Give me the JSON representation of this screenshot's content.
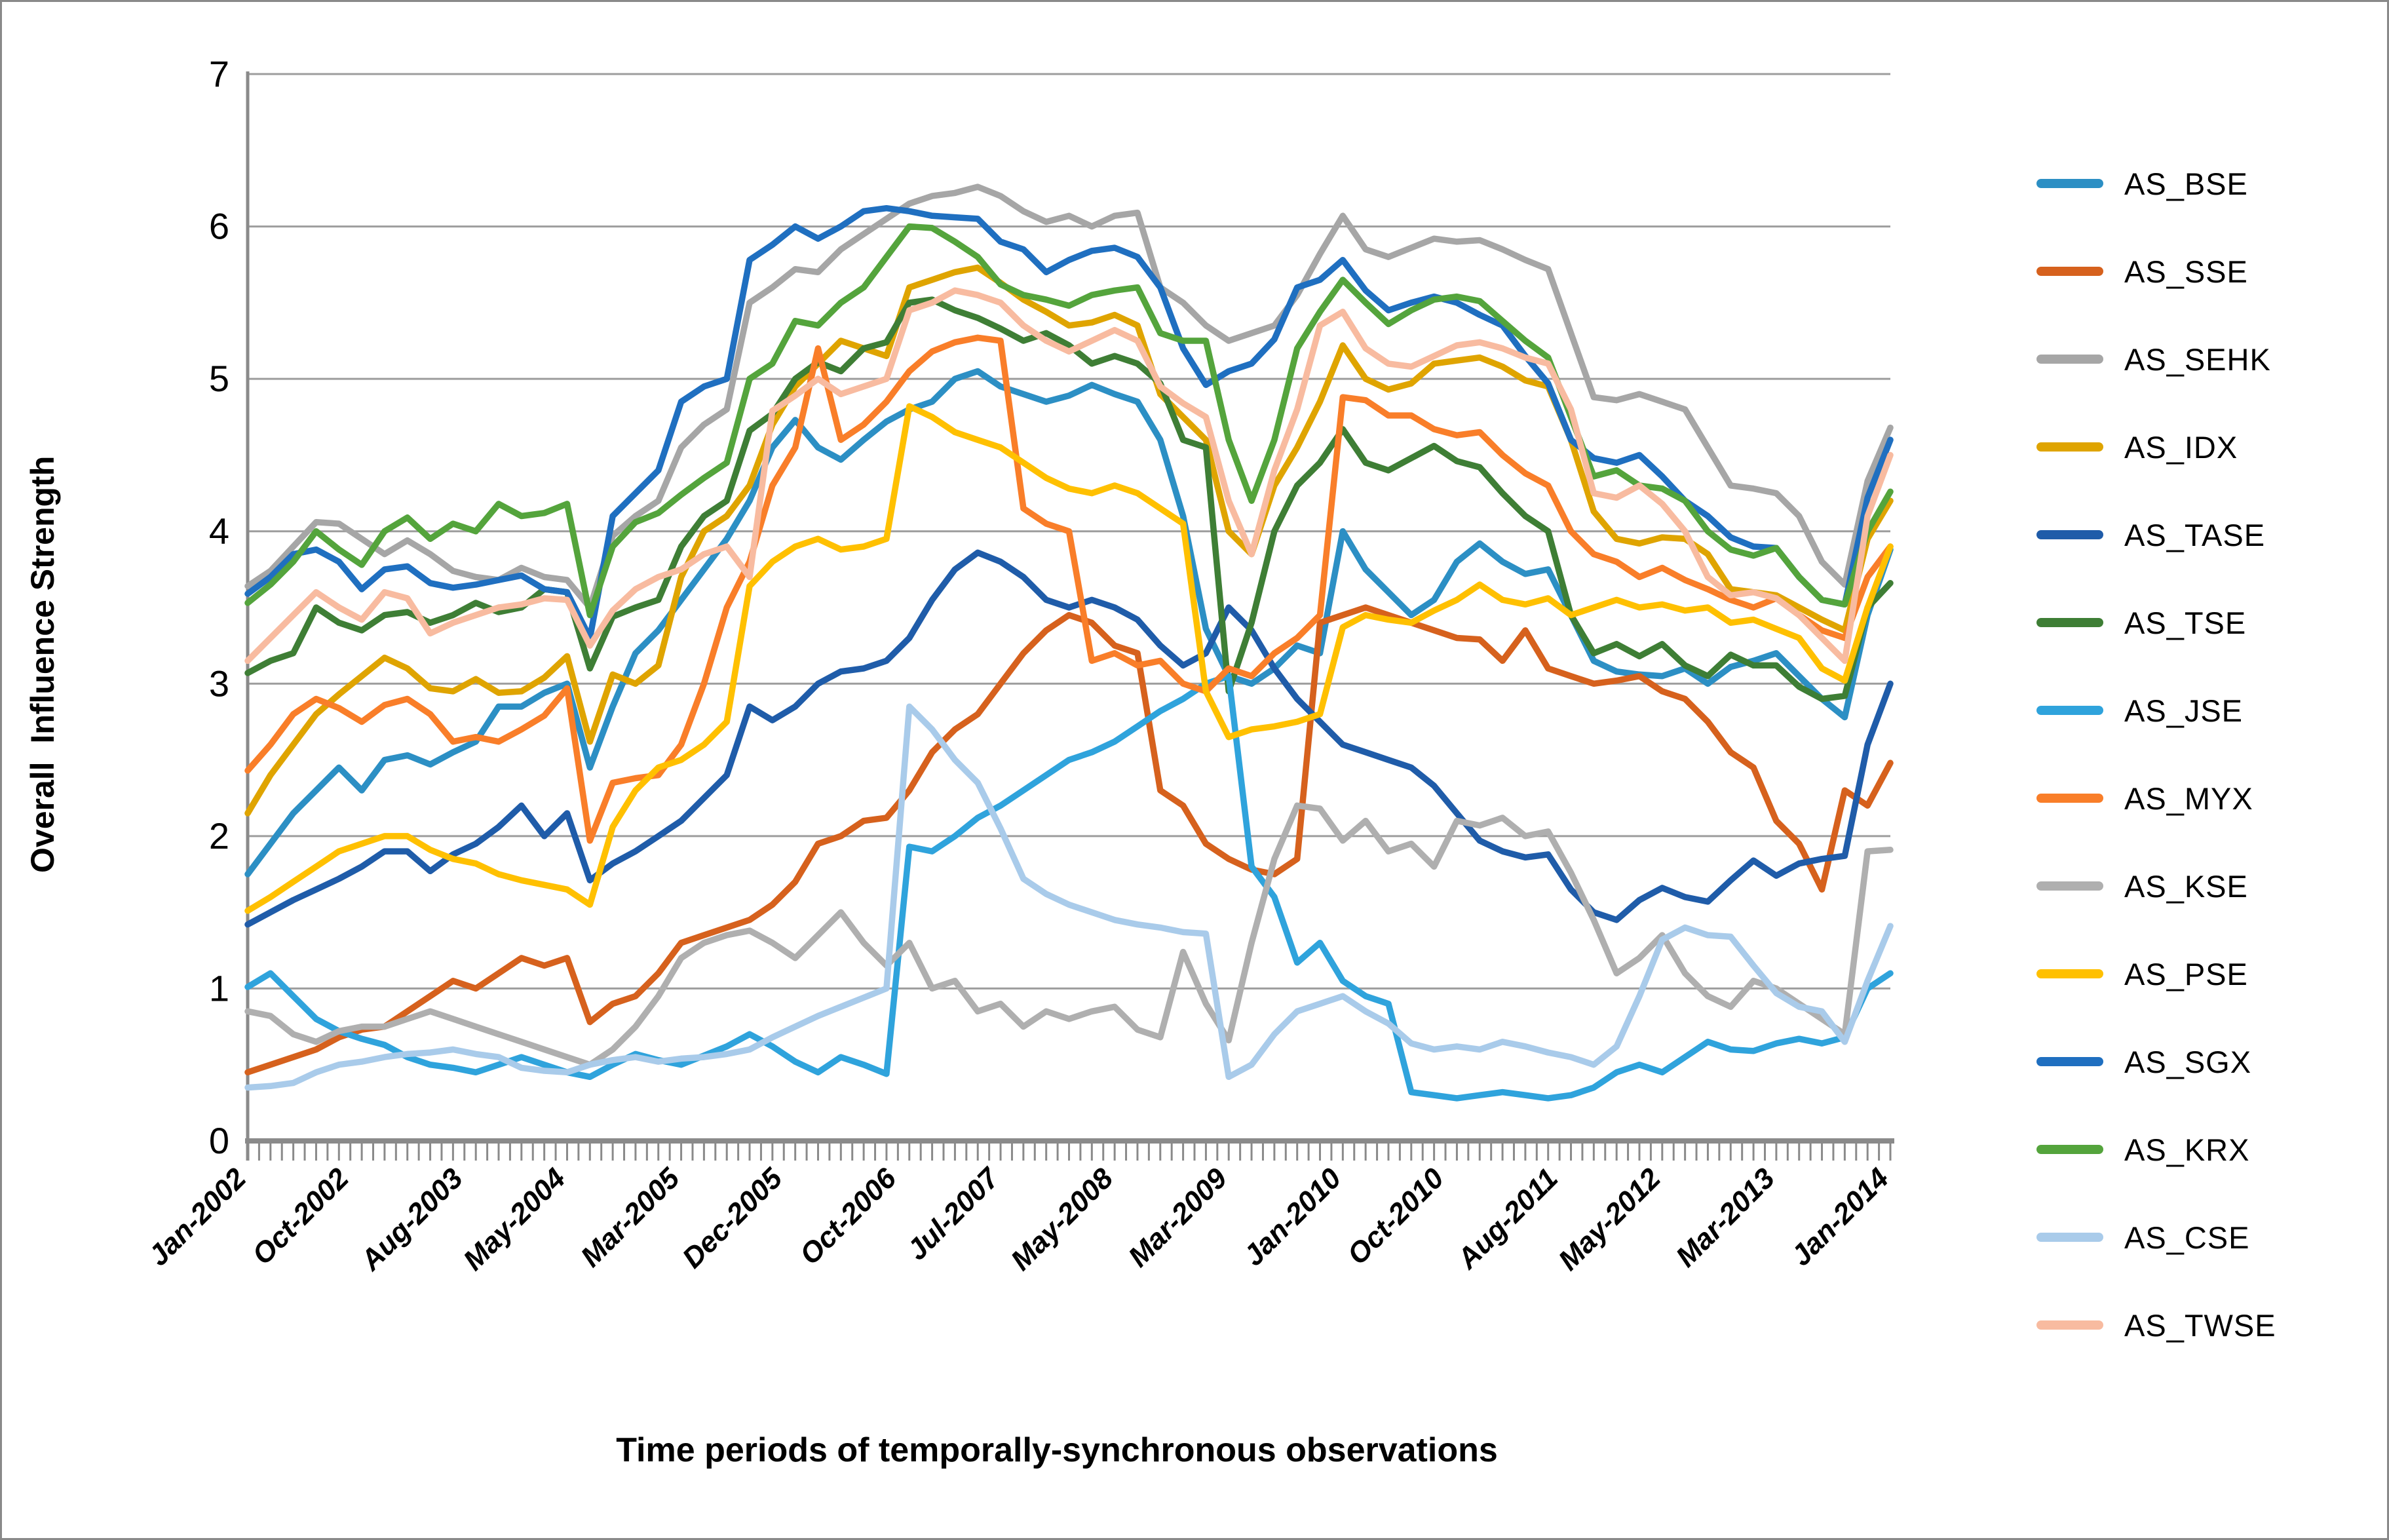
{
  "chart_data": {
    "type": "line",
    "title": "",
    "ylabel": "Overall  Influence Strength",
    "xlabel": "Time periods of temporally-synchronous observations",
    "ylim": [
      0,
      7
    ],
    "y_ticks": [
      0,
      1,
      2,
      3,
      4,
      5,
      6,
      7
    ],
    "grid": "horizontal",
    "legend_position": "right",
    "x_tick_labels": [
      "Jan-2002",
      "Oct-2002",
      "Aug-2003",
      "May-2004",
      "Mar-2005",
      "Dec-2005",
      "Oct-2006",
      "Jul-2007",
      "May-2008",
      "Mar-2009",
      "Jan-2010",
      "Oct-2010",
      "Aug-2011",
      "May-2012",
      "Mar-2013",
      "Jan-2014"
    ],
    "x_tick_month_offsets": [
      0,
      9,
      19,
      28,
      38,
      47,
      57,
      66,
      76,
      86,
      96,
      105,
      115,
      124,
      134,
      144
    ],
    "total_months": 144,
    "sample_interval_months": 2,
    "series": [
      {
        "name": "AS_BSE",
        "color": "#2C8FC4",
        "values": [
          1.75,
          1.95,
          2.15,
          2.3,
          2.45,
          2.3,
          2.5,
          2.53,
          2.47,
          2.55,
          2.62,
          2.85,
          2.85,
          2.94,
          3.0,
          2.45,
          2.85,
          3.2,
          3.35,
          3.55,
          3.75,
          3.95,
          4.2,
          4.55,
          4.73,
          4.55,
          4.47,
          4.6,
          4.72,
          4.8,
          4.85,
          5.0,
          5.05,
          4.95,
          4.9,
          4.85,
          4.89,
          4.96,
          4.9,
          4.85,
          4.6,
          4.1,
          3.36,
          3.05,
          3.0,
          3.1,
          3.25,
          3.2,
          4.0,
          3.75,
          3.6,
          3.45,
          3.55,
          3.8,
          3.92,
          3.8,
          3.72,
          3.75,
          3.45,
          3.15,
          3.08,
          3.06,
          3.05,
          3.1,
          3.0,
          3.11,
          3.15,
          3.2,
          3.05,
          2.9,
          2.78,
          3.45,
          3.88
        ]
      },
      {
        "name": "AS_SSE",
        "color": "#D6611D",
        "values": [
          0.45,
          0.5,
          0.55,
          0.6,
          0.68,
          0.73,
          0.75,
          0.85,
          0.95,
          1.05,
          1.0,
          1.1,
          1.2,
          1.15,
          1.2,
          0.78,
          0.9,
          0.95,
          1.1,
          1.3,
          1.35,
          1.4,
          1.45,
          1.55,
          1.7,
          1.95,
          2.0,
          2.1,
          2.12,
          2.3,
          2.55,
          2.7,
          2.8,
          3.0,
          3.2,
          3.35,
          3.45,
          3.4,
          3.25,
          3.2,
          2.3,
          2.2,
          1.95,
          1.85,
          1.78,
          1.75,
          1.85,
          3.4,
          3.45,
          3.5,
          3.45,
          3.4,
          3.35,
          3.3,
          3.29,
          3.15,
          3.35,
          3.1,
          3.05,
          3.0,
          3.02,
          3.05,
          2.95,
          2.9,
          2.75,
          2.55,
          2.45,
          2.1,
          1.95,
          1.65,
          2.3,
          2.2,
          2.48
        ]
      },
      {
        "name": "AS_SEHK",
        "color": "#A6A6A6",
        "values": [
          3.64,
          3.74,
          3.9,
          4.06,
          4.05,
          3.95,
          3.85,
          3.94,
          3.85,
          3.74,
          3.7,
          3.68,
          3.76,
          3.7,
          3.68,
          3.5,
          3.97,
          4.1,
          4.2,
          4.55,
          4.7,
          4.8,
          5.5,
          5.6,
          5.72,
          5.7,
          5.85,
          5.95,
          6.05,
          6.15,
          6.2,
          6.22,
          6.26,
          6.2,
          6.1,
          6.03,
          6.07,
          6.0,
          6.07,
          6.09,
          5.6,
          5.5,
          5.35,
          5.25,
          5.3,
          5.35,
          5.55,
          5.82,
          6.07,
          5.85,
          5.8,
          5.86,
          5.92,
          5.9,
          5.91,
          5.85,
          5.78,
          5.72,
          5.3,
          4.88,
          4.86,
          4.9,
          4.85,
          4.8,
          4.55,
          4.3,
          4.28,
          4.25,
          4.1,
          3.8,
          3.65,
          4.33,
          4.68
        ]
      },
      {
        "name": "AS_IDX",
        "color": "#DFA400",
        "values": [
          2.15,
          2.4,
          2.6,
          2.8,
          2.93,
          3.05,
          3.17,
          3.1,
          2.97,
          2.95,
          3.03,
          2.94,
          2.95,
          3.04,
          3.18,
          2.62,
          3.06,
          3.0,
          3.12,
          3.7,
          4.0,
          4.1,
          4.3,
          4.7,
          4.95,
          5.1,
          5.25,
          5.2,
          5.15,
          5.6,
          5.65,
          5.7,
          5.73,
          5.63,
          5.52,
          5.44,
          5.35,
          5.37,
          5.42,
          5.35,
          4.9,
          4.75,
          4.6,
          4.0,
          3.85,
          4.3,
          4.55,
          4.85,
          5.22,
          5.0,
          4.93,
          4.97,
          5.1,
          5.12,
          5.14,
          5.08,
          4.99,
          4.95,
          4.6,
          4.13,
          3.95,
          3.92,
          3.96,
          3.95,
          3.85,
          3.62,
          3.6,
          3.58,
          3.5,
          3.42,
          3.35,
          3.95,
          4.2
        ]
      },
      {
        "name": "AS_TASE",
        "color": "#1F5CA9",
        "values": [
          1.42,
          1.5,
          1.58,
          1.65,
          1.72,
          1.8,
          1.9,
          1.9,
          1.77,
          1.88,
          1.95,
          2.06,
          2.2,
          2.0,
          2.15,
          1.71,
          1.82,
          1.9,
          2.0,
          2.1,
          2.25,
          2.4,
          2.85,
          2.76,
          2.85,
          3.0,
          3.08,
          3.1,
          3.15,
          3.3,
          3.55,
          3.75,
          3.86,
          3.8,
          3.7,
          3.55,
          3.5,
          3.55,
          3.5,
          3.42,
          3.25,
          3.12,
          3.2,
          3.5,
          3.35,
          3.1,
          2.9,
          2.75,
          2.6,
          2.55,
          2.5,
          2.45,
          2.33,
          2.15,
          1.97,
          1.9,
          1.86,
          1.88,
          1.65,
          1.5,
          1.45,
          1.58,
          1.66,
          1.6,
          1.57,
          1.71,
          1.84,
          1.74,
          1.82,
          1.85,
          1.87,
          2.6,
          3.0
        ]
      },
      {
        "name": "AS_TSE",
        "color": "#3E7E35",
        "values": [
          3.07,
          3.15,
          3.2,
          3.5,
          3.4,
          3.35,
          3.45,
          3.47,
          3.4,
          3.45,
          3.53,
          3.47,
          3.5,
          3.62,
          3.6,
          3.1,
          3.44,
          3.5,
          3.55,
          3.9,
          4.1,
          4.2,
          4.66,
          4.77,
          5.0,
          5.11,
          5.05,
          5.2,
          5.24,
          5.5,
          5.52,
          5.45,
          5.4,
          5.33,
          5.25,
          5.3,
          5.22,
          5.1,
          5.15,
          5.1,
          4.97,
          4.6,
          4.55,
          2.95,
          3.4,
          4.0,
          4.3,
          4.45,
          4.67,
          4.45,
          4.4,
          4.48,
          4.56,
          4.46,
          4.42,
          4.25,
          4.1,
          4.0,
          3.45,
          3.2,
          3.26,
          3.18,
          3.26,
          3.12,
          3.05,
          3.19,
          3.12,
          3.12,
          2.98,
          2.9,
          2.92,
          3.5,
          3.66
        ]
      },
      {
        "name": "AS_JSE",
        "color": "#2FA3DC",
        "values": [
          1.01,
          1.1,
          0.95,
          0.8,
          0.72,
          0.67,
          0.63,
          0.55,
          0.5,
          0.48,
          0.45,
          0.5,
          0.55,
          0.5,
          0.45,
          0.42,
          0.5,
          0.57,
          0.53,
          0.5,
          0.56,
          0.62,
          0.7,
          0.62,
          0.52,
          0.45,
          0.55,
          0.5,
          0.44,
          1.93,
          1.9,
          2.0,
          2.12,
          2.2,
          2.3,
          2.4,
          2.5,
          2.55,
          2.62,
          2.72,
          2.82,
          2.9,
          3.0,
          3.05,
          1.8,
          1.6,
          1.17,
          1.3,
          1.05,
          0.95,
          0.9,
          0.32,
          0.3,
          0.28,
          0.3,
          0.32,
          0.3,
          0.28,
          0.3,
          0.35,
          0.45,
          0.5,
          0.45,
          0.55,
          0.65,
          0.6,
          0.59,
          0.64,
          0.67,
          0.64,
          0.68,
          1.0,
          1.1
        ]
      },
      {
        "name": "AS_MYX",
        "color": "#F97E29",
        "values": [
          2.43,
          2.6,
          2.8,
          2.9,
          2.84,
          2.75,
          2.86,
          2.9,
          2.8,
          2.62,
          2.65,
          2.62,
          2.7,
          2.79,
          2.97,
          1.97,
          2.35,
          2.38,
          2.4,
          2.6,
          3.0,
          3.5,
          3.8,
          4.3,
          4.55,
          5.2,
          4.6,
          4.7,
          4.85,
          5.05,
          5.18,
          5.24,
          5.27,
          5.25,
          4.15,
          4.05,
          4.0,
          3.15,
          3.2,
          3.12,
          3.15,
          3.0,
          2.95,
          3.1,
          3.05,
          3.2,
          3.3,
          3.45,
          4.88,
          4.86,
          4.76,
          4.76,
          4.67,
          4.63,
          4.65,
          4.5,
          4.38,
          4.3,
          4.0,
          3.85,
          3.8,
          3.7,
          3.76,
          3.68,
          3.62,
          3.55,
          3.5,
          3.56,
          3.45,
          3.35,
          3.3,
          3.7,
          3.9
        ]
      },
      {
        "name": "AS_KSE",
        "color": "#AFAFAF",
        "values": [
          0.85,
          0.82,
          0.7,
          0.65,
          0.72,
          0.75,
          0.75,
          0.8,
          0.85,
          0.8,
          0.75,
          0.7,
          0.65,
          0.6,
          0.55,
          0.5,
          0.6,
          0.75,
          0.95,
          1.2,
          1.3,
          1.35,
          1.38,
          1.3,
          1.2,
          1.35,
          1.5,
          1.3,
          1.15,
          1.3,
          1.0,
          1.05,
          0.85,
          0.9,
          0.75,
          0.85,
          0.8,
          0.85,
          0.88,
          0.73,
          0.68,
          1.24,
          0.9,
          0.66,
          1.3,
          1.85,
          2.2,
          2.18,
          1.97,
          2.1,
          1.9,
          1.95,
          1.8,
          2.1,
          2.07,
          2.12,
          2.0,
          2.03,
          1.76,
          1.45,
          1.1,
          1.2,
          1.35,
          1.1,
          0.95,
          0.88,
          1.05,
          1.0,
          0.9,
          0.8,
          0.7,
          1.9,
          1.91
        ]
      },
      {
        "name": "AS_PSE",
        "color": "#FFC000",
        "values": [
          1.51,
          1.6,
          1.7,
          1.8,
          1.9,
          1.95,
          2.0,
          2.0,
          1.91,
          1.85,
          1.82,
          1.75,
          1.71,
          1.68,
          1.65,
          1.55,
          2.06,
          2.3,
          2.45,
          2.5,
          2.6,
          2.75,
          3.64,
          3.8,
          3.9,
          3.95,
          3.88,
          3.9,
          3.95,
          4.82,
          4.75,
          4.65,
          4.6,
          4.55,
          4.45,
          4.35,
          4.28,
          4.25,
          4.3,
          4.25,
          4.15,
          4.05,
          2.95,
          2.65,
          2.7,
          2.72,
          2.75,
          2.8,
          3.37,
          3.45,
          3.42,
          3.4,
          3.48,
          3.55,
          3.65,
          3.55,
          3.52,
          3.56,
          3.45,
          3.5,
          3.55,
          3.5,
          3.52,
          3.48,
          3.5,
          3.4,
          3.42,
          3.36,
          3.3,
          3.1,
          3.02,
          3.5,
          3.9
        ]
      },
      {
        "name": "AS_SGX",
        "color": "#1F6FC0",
        "values": [
          3.59,
          3.7,
          3.85,
          3.88,
          3.8,
          3.62,
          3.75,
          3.77,
          3.66,
          3.63,
          3.65,
          3.68,
          3.71,
          3.62,
          3.6,
          3.3,
          4.1,
          4.25,
          4.4,
          4.85,
          4.95,
          5.0,
          5.78,
          5.88,
          6.0,
          5.92,
          6.0,
          6.1,
          6.12,
          6.1,
          6.07,
          6.06,
          6.05,
          5.9,
          5.85,
          5.7,
          5.78,
          5.84,
          5.86,
          5.8,
          5.6,
          5.2,
          4.96,
          5.05,
          5.1,
          5.26,
          5.6,
          5.65,
          5.78,
          5.58,
          5.45,
          5.5,
          5.54,
          5.5,
          5.42,
          5.35,
          5.15,
          4.97,
          4.6,
          4.48,
          4.45,
          4.5,
          4.36,
          4.2,
          4.1,
          3.96,
          3.9,
          3.89,
          3.7,
          3.55,
          3.52,
          4.22,
          4.6
        ]
      },
      {
        "name": "AS_KRX",
        "color": "#54A43C",
        "values": [
          3.53,
          3.65,
          3.8,
          4.0,
          3.88,
          3.78,
          4.0,
          4.09,
          3.95,
          4.05,
          4.0,
          4.18,
          4.1,
          4.12,
          4.18,
          3.45,
          3.9,
          4.06,
          4.12,
          4.24,
          4.35,
          4.45,
          5.0,
          5.1,
          5.38,
          5.35,
          5.5,
          5.6,
          5.8,
          6.0,
          5.99,
          5.9,
          5.8,
          5.62,
          5.55,
          5.52,
          5.48,
          5.55,
          5.58,
          5.6,
          5.3,
          5.25,
          5.25,
          4.6,
          4.2,
          4.6,
          5.2,
          5.44,
          5.65,
          5.5,
          5.36,
          5.45,
          5.52,
          5.54,
          5.51,
          5.38,
          5.25,
          5.14,
          4.75,
          4.36,
          4.4,
          4.3,
          4.28,
          4.2,
          4.0,
          3.88,
          3.84,
          3.89,
          3.7,
          3.55,
          3.52,
          4.0,
          4.26
        ]
      },
      {
        "name": "AS_CSE",
        "color": "#A9CBEA",
        "values": [
          0.35,
          0.36,
          0.38,
          0.45,
          0.5,
          0.52,
          0.55,
          0.57,
          0.58,
          0.6,
          0.57,
          0.55,
          0.48,
          0.46,
          0.45,
          0.5,
          0.53,
          0.55,
          0.52,
          0.54,
          0.55,
          0.57,
          0.6,
          0.68,
          0.75,
          0.82,
          0.88,
          0.94,
          1.0,
          2.85,
          2.7,
          2.5,
          2.35,
          2.05,
          1.72,
          1.62,
          1.55,
          1.5,
          1.45,
          1.42,
          1.4,
          1.37,
          1.36,
          0.42,
          0.5,
          0.7,
          0.85,
          0.9,
          0.95,
          0.85,
          0.77,
          0.64,
          0.6,
          0.62,
          0.6,
          0.65,
          0.62,
          0.58,
          0.55,
          0.5,
          0.62,
          0.95,
          1.32,
          1.4,
          1.35,
          1.34,
          1.15,
          0.97,
          0.88,
          0.85,
          0.65,
          1.05,
          1.41
        ]
      },
      {
        "name": "AS_TWSE",
        "color": "#F8BBA0",
        "values": [
          3.15,
          3.3,
          3.45,
          3.6,
          3.5,
          3.42,
          3.6,
          3.56,
          3.33,
          3.4,
          3.45,
          3.5,
          3.52,
          3.56,
          3.55,
          3.25,
          3.48,
          3.62,
          3.7,
          3.75,
          3.85,
          3.9,
          3.7,
          4.79,
          4.89,
          5.0,
          4.9,
          4.95,
          5.0,
          5.45,
          5.5,
          5.58,
          5.55,
          5.5,
          5.35,
          5.25,
          5.18,
          5.25,
          5.32,
          5.25,
          4.95,
          4.84,
          4.75,
          4.2,
          3.85,
          4.4,
          4.8,
          5.35,
          5.44,
          5.2,
          5.1,
          5.08,
          5.15,
          5.22,
          5.24,
          5.2,
          5.14,
          5.1,
          4.8,
          4.25,
          4.22,
          4.3,
          4.18,
          4.0,
          3.7,
          3.58,
          3.6,
          3.56,
          3.45,
          3.3,
          3.15,
          4.1,
          4.5
        ]
      }
    ]
  }
}
